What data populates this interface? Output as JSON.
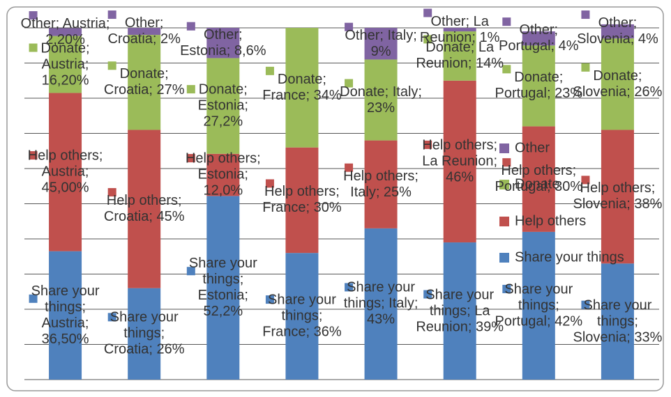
{
  "chart_data": {
    "type": "stacked_bar",
    "categories": [
      "Austria",
      "Croatia",
      "Estonia",
      "France",
      "Italy",
      "La Reunion",
      "Portugal",
      "Slovenia"
    ],
    "series": [
      {
        "name": "Share your things",
        "color": "#4f81bd",
        "values": [
          36.5,
          26,
          52.2,
          36,
          43,
          39,
          42,
          33
        ],
        "value_labels": [
          "Share your things; Austria; 36,50%",
          "Share your things; Croatia; 26%",
          "Share your things; Estonia; 52,2%",
          "Share your things; France; 36%",
          "Share your things; Italy; 43%",
          "Share your things; La Reunion; 39%",
          "Share your things; Portugal; 42%",
          "Share your things; Slovenia; 33%"
        ]
      },
      {
        "name": "Help others",
        "color": "#c0504d",
        "values": [
          45,
          45,
          12,
          30,
          25,
          46,
          30,
          38
        ],
        "value_labels": [
          "Help others; Austria; 45,00%",
          "Help others; Croatia; 45%",
          "Help others; Estonia; 12,0%",
          "Help others; France; 30%",
          "Help others; Italy; 25%",
          "Help others; La Reunion; 46%",
          "Help others; Portugal; 30%",
          "Help others; Slovenia; 38%"
        ]
      },
      {
        "name": "Donate",
        "color": "#9bbb59",
        "values": [
          16.2,
          27,
          27.2,
          34,
          23,
          14,
          23,
          26
        ],
        "value_labels": [
          "Donate; Austria; 16,20%",
          "Donate; Croatia; 27%",
          "Donate; Estonia; 27,2%",
          "Donate; France; 34%",
          "Donate; Italy; 23%",
          "Donate; La Reunion; 14%",
          "Donate; Portugal; 23%",
          "Donate; Slovenia; 26%"
        ]
      },
      {
        "name": "Other",
        "color": "#8064a2",
        "values": [
          2.2,
          2,
          8.6,
          null,
          9,
          1,
          4,
          4
        ],
        "value_labels": [
          "Other; Austria; 2,20%",
          "Other; Croatia; 2%",
          "Other; Estonia; 8,6%",
          null,
          "Other; Italy; 9%",
          "Other; La Reunion; 1%",
          "Other; Portugal; 4%",
          "Other; Slovenia; 4%"
        ]
      }
    ],
    "ylim": [
      0,
      100
    ],
    "yticks": [
      0,
      10,
      20,
      30,
      40,
      50,
      60,
      70,
      80,
      90,
      100
    ],
    "grid": true,
    "legend": "right"
  }
}
